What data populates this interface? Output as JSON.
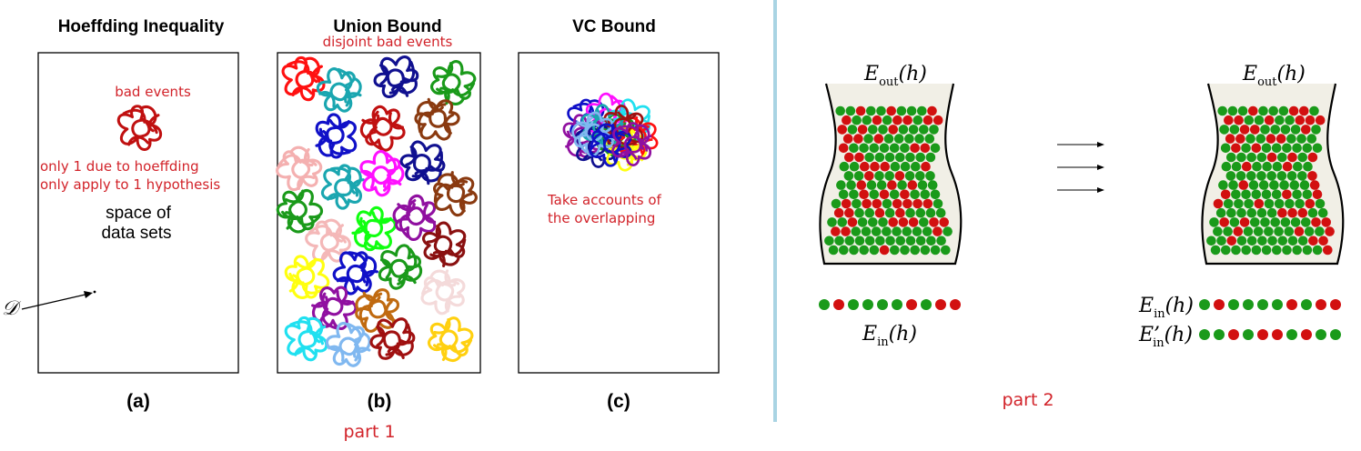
{
  "panel_a": {
    "title": "Hoeffding  Inequality",
    "bad_events": "bad events",
    "note_line1": "only 1 due to hoeffding",
    "note_line2": "only apply to 1 hypothesis",
    "space_line1": "space  of",
    "space_line2": "data  sets",
    "d_label": "𝒟",
    "caption": "(a)"
  },
  "panel_b": {
    "title": "Union  Bound",
    "subtitle": "disjoint bad events",
    "caption": "(b)",
    "blobs": [
      {
        "color": "#ff1010"
      },
      {
        "color": "#1aa6b0"
      },
      {
        "color": "#101090"
      },
      {
        "color": "#1a9a1a"
      },
      {
        "color": "#1010c8"
      },
      {
        "color": "#c01010"
      },
      {
        "color": "#8a3a10"
      },
      {
        "color": "#f4b0b0"
      },
      {
        "color": "#1aa6b0"
      },
      {
        "color": "#ff10ff"
      },
      {
        "color": "#101090"
      },
      {
        "color": "#1a9a1a"
      },
      {
        "color": "#10ff10"
      },
      {
        "color": "#9010a0"
      },
      {
        "color": "#8a3a10"
      },
      {
        "color": "#f4b8b8"
      },
      {
        "color": "#1010c8"
      },
      {
        "color": "#1a9a1a"
      },
      {
        "color": "#8a1010"
      },
      {
        "color": "#ffff10"
      },
      {
        "color": "#9010a0"
      },
      {
        "color": "#c06a10"
      },
      {
        "color": "#f4dada"
      },
      {
        "color": "#20e0f0"
      },
      {
        "color": "#80b8f0"
      },
      {
        "color": "#a01010"
      },
      {
        "color": "#ffd010"
      }
    ]
  },
  "panel_c": {
    "title": "VC  Bound",
    "note_line1": "Take accounts of",
    "note_line2": "the overlapping",
    "caption": "(c)",
    "blob_colors": [
      "#1010c8",
      "#ff10ff",
      "#20e0f0",
      "#9010a0",
      "#1a9a1a",
      "#ff1010",
      "#101090",
      "#ffff10",
      "#1aa6b0",
      "#a01010",
      "#80b8f0",
      "#1010c8",
      "#9010a0"
    ]
  },
  "part1_label": "part 1",
  "part2": {
    "label": "part 2",
    "eout": "E",
    "eout_sub": "out",
    "h": "(h)",
    "ein": "E",
    "ein_sub": "in",
    "ein_prime": "E’",
    "colors": {
      "green": "#1a9a1a",
      "red": "#d21010",
      "divider": "#a9d4e3"
    },
    "sample1": [
      "green",
      "red",
      "green",
      "green",
      "green",
      "green",
      "red",
      "green",
      "red",
      "red"
    ],
    "sample_in": [
      "green",
      "red",
      "green",
      "green",
      "green",
      "green",
      "red",
      "green",
      "red",
      "red"
    ],
    "sample_in_prime": [
      "green",
      "green",
      "red",
      "green",
      "red",
      "red",
      "green",
      "red",
      "green",
      "green"
    ]
  }
}
